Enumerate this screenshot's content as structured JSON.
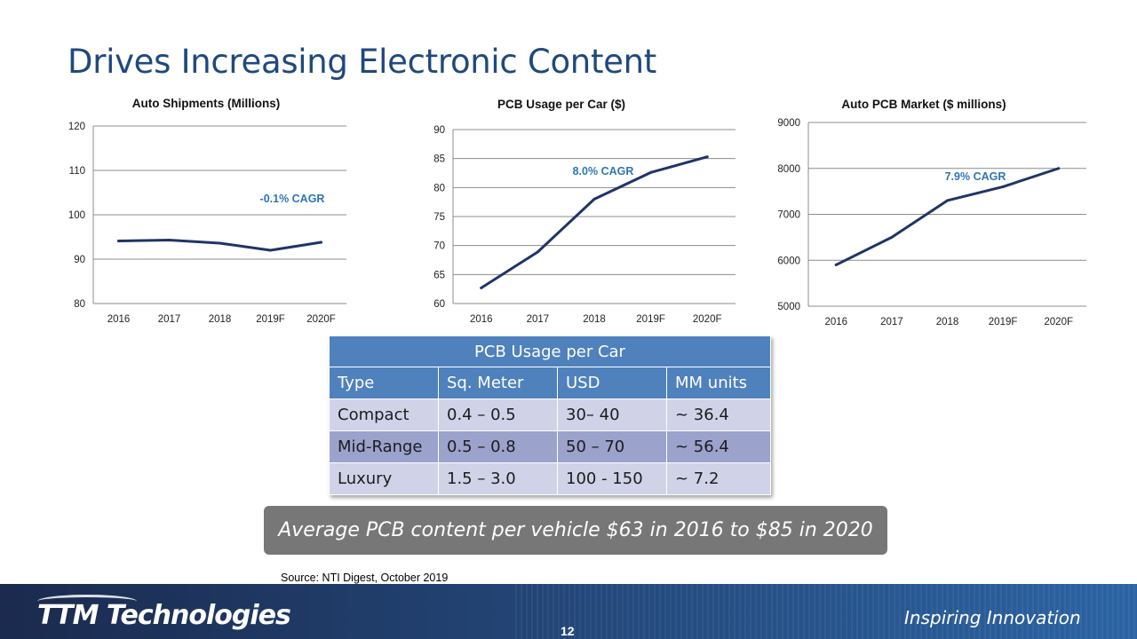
{
  "slide": {
    "title": "Drives Increasing Electronic Content",
    "source": "Source:  NTI Digest, October 2019",
    "banner": "Average PCB content per vehicle $63 in 2016 to $85 in 2020",
    "footer_logo": "TTM Technologies",
    "footer_tagline": "Inspiring Innovation",
    "page_number": "12"
  },
  "colors": {
    "line": "#1f3468",
    "cagr": "#2e75b6",
    "grid": "#8c8c8c",
    "table_header": "#4f81bd",
    "banner": "#777777"
  },
  "chart_data": [
    {
      "type": "line",
      "title": "Auto Shipments (Millions)",
      "categories": [
        "2016",
        "2017",
        "2018",
        "2019F",
        "2020F"
      ],
      "values": [
        94.1,
        94.3,
        93.6,
        92.0,
        93.8
      ],
      "ylim": [
        80,
        120
      ],
      "yticks": [
        80,
        90,
        100,
        110,
        120
      ],
      "annotation": "-0.1% CAGR",
      "grid": true
    },
    {
      "type": "line",
      "title": "PCB Usage per Car ($)",
      "categories": [
        "2016",
        "2017",
        "2018",
        "2019F",
        "2020F"
      ],
      "values": [
        62.7,
        68.9,
        78.0,
        82.6,
        85.3
      ],
      "ylim": [
        60,
        90
      ],
      "yticks": [
        60,
        65,
        70,
        75,
        80,
        85,
        90
      ],
      "annotation": "8.0% CAGR",
      "grid": true
    },
    {
      "type": "line",
      "title": "Auto PCB Market ($ millions)",
      "categories": [
        "2016",
        "2017",
        "2018",
        "2019F",
        "2020F"
      ],
      "values": [
        5900,
        6500,
        7300,
        7600,
        8000
      ],
      "ylim": [
        5000,
        9000
      ],
      "yticks": [
        5000,
        6000,
        7000,
        8000,
        9000
      ],
      "annotation": "7.9% CAGR",
      "grid": true
    }
  ],
  "table": {
    "caption": "PCB Usage per Car",
    "headers": [
      "Type",
      "Sq. Meter",
      "USD",
      "MM units"
    ],
    "rows": [
      [
        "Compact",
        "0.4 – 0.5",
        "30– 40",
        "~ 36.4"
      ],
      [
        "Mid-Range",
        "0.5 – 0.8",
        "50 – 70",
        "~ 56.4"
      ],
      [
        "Luxury",
        "1.5 – 3.0",
        "100 - 150",
        "~ 7.2"
      ]
    ]
  }
}
